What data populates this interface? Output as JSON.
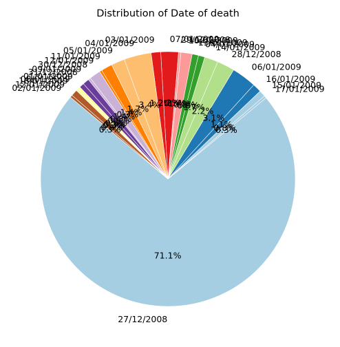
{
  "chart_data": {
    "type": "pie",
    "title": "Distribution of Date of death",
    "start_angle_deg": 140,
    "direction": "counterclockwise",
    "slices": [
      {
        "label": "27/12/2008",
        "pct_text": "71.1%",
        "value": 71.1,
        "color": "#a6cee3"
      },
      {
        "label": "17/01/2009",
        "pct_text": "0.3%",
        "value": 0.3,
        "color": "#a6cee3"
      },
      {
        "label": "15/01/2009",
        "pct_text": "0.8%",
        "value": 0.8,
        "color": "#a6cee3"
      },
      {
        "label": "16/01/2009",
        "pct_text": "1.1%",
        "value": 1.1,
        "color": "#1f78b4"
      },
      {
        "label": "06/01/2009",
        "pct_text": "3.1%",
        "value": 3.1,
        "color": "#1f78b4"
      },
      {
        "label": "28/12/2008",
        "pct_text": "2.2%",
        "value": 2.2,
        "color": "#b2df8a"
      },
      {
        "label": "14/01/2009",
        "pct_text": "1.7%",
        "value": 1.7,
        "color": "#b2df8a"
      },
      {
        "label": "04/01/2009",
        "pct_text": "0.8%",
        "value": 0.8,
        "color": "#33a02c"
      },
      {
        "label": "13/01/2009",
        "pct_text": "0.8%",
        "value": 0.8,
        "color": "#33a02c"
      },
      {
        "label": "10/01/2009",
        "pct_text": "1.4%",
        "value": 1.4,
        "color": "#fb9a99"
      },
      {
        "label": "29/12/2008",
        "pct_text": "0.3%",
        "value": 0.3,
        "color": "#fb9a99"
      },
      {
        "label": "07/01/2009",
        "pct_text": "2.2%",
        "value": 2.2,
        "color": "#e31a1c"
      },
      {
        "label": "03/01/2009",
        "pct_text": "1.2%",
        "value": 1.2,
        "color": "#e31a1c"
      },
      {
        "label": "04/01/2009",
        "pct_text": "3.4%",
        "value": 3.4,
        "color": "#fdbf6f"
      },
      {
        "label": "05/01/2009",
        "pct_text": "1.7%",
        "value": 1.7,
        "color": "#fdbf6f"
      },
      {
        "label": "11/01/2009",
        "pct_text": "1.4%",
        "value": 1.4,
        "color": "#ff7f00"
      },
      {
        "label": "12/01/2009",
        "pct_text": "0.3%",
        "value": 0.3,
        "color": "#ff7f00"
      },
      {
        "label": "30/12/2008",
        "pct_text": "1.4%",
        "value": 1.4,
        "color": "#cab2d6"
      },
      {
        "label": "09/01/2009",
        "pct_text": "0.3%",
        "value": 0.3,
        "color": "#cab2d6"
      },
      {
        "label": "31/12/2008",
        "pct_text": "0.8%",
        "value": 0.8,
        "color": "#6a3d9a"
      },
      {
        "label": "01/01/2009",
        "pct_text": "0.6%",
        "value": 0.6,
        "color": "#6a3d9a"
      },
      {
        "label": "08/01/2009",
        "pct_text": "0.3%",
        "value": 0.3,
        "color": "#ffff99"
      },
      {
        "label": "18/01/2009",
        "pct_text": "0.3%",
        "value": 0.3,
        "color": "#ffff99"
      },
      {
        "label": "12/01/2009",
        "pct_text": "0.8%",
        "value": 0.8,
        "color": "#b15928"
      },
      {
        "label": "02/01/2009",
        "pct_text": "0.3%",
        "value": 0.3,
        "color": "#b15928"
      }
    ]
  }
}
